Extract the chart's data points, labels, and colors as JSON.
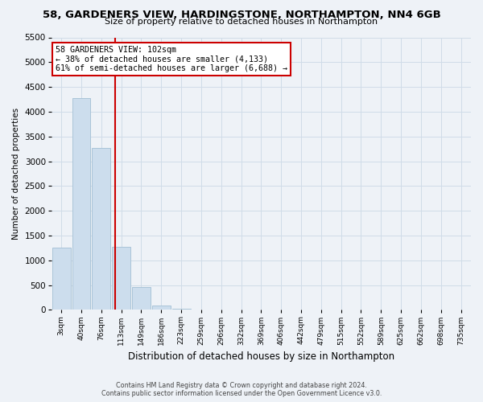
{
  "title": "58, GARDENERS VIEW, HARDINGSTONE, NORTHAMPTON, NN4 6GB",
  "subtitle": "Size of property relative to detached houses in Northampton",
  "xlabel": "Distribution of detached houses by size in Northampton",
  "ylabel": "Number of detached properties",
  "footer_line1": "Contains HM Land Registry data © Crown copyright and database right 2024.",
  "footer_line2": "Contains public sector information licensed under the Open Government Licence v3.0.",
  "annotation_line1": "58 GARDENERS VIEW: 102sqm",
  "annotation_line2": "← 38% of detached houses are smaller (4,133)",
  "annotation_line3": "61% of semi-detached houses are larger (6,688) →",
  "bar_labels": [
    "3sqm",
    "40sqm",
    "76sqm",
    "113sqm",
    "149sqm",
    "186sqm",
    "223sqm",
    "259sqm",
    "296sqm",
    "332sqm",
    "369sqm",
    "406sqm",
    "442sqm",
    "479sqm",
    "515sqm",
    "552sqm",
    "589sqm",
    "625sqm",
    "662sqm",
    "698sqm",
    "735sqm"
  ],
  "bar_values": [
    1250,
    4280,
    3270,
    1270,
    460,
    88,
    28,
    10,
    4,
    2,
    1,
    0,
    0,
    0,
    0,
    0,
    0,
    0,
    0,
    0,
    0
  ],
  "bar_color": "#ccdded",
  "bar_edge_color": "#aac4d8",
  "vline_color": "#cc0000",
  "annotation_box_edge": "#cc0000",
  "annotation_box_fill": "#ffffff",
  "grid_color": "#d0dce8",
  "background_color": "#eef2f7",
  "ylim": [
    0,
    5500
  ],
  "yticks": [
    0,
    500,
    1000,
    1500,
    2000,
    2500,
    3000,
    3500,
    4000,
    4500,
    5000,
    5500
  ],
  "vline_pos": 2.7
}
